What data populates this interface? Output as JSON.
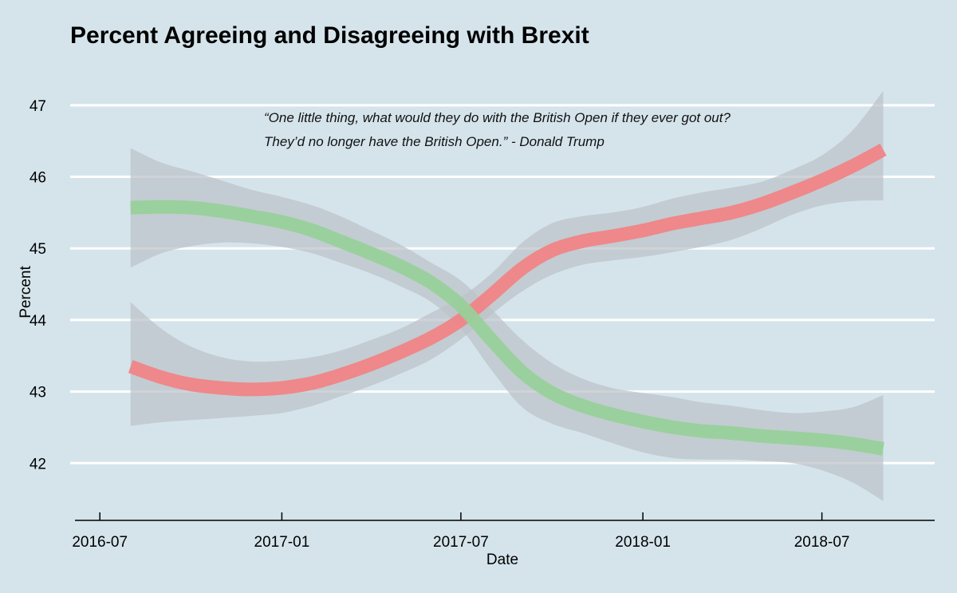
{
  "chart_data": {
    "type": "line",
    "title": "Percent Agreeing and Disagreeing with Brexit",
    "xlabel": "Date",
    "ylabel": "Percent",
    "x_ticks": [
      "2016-07-01",
      "2017-01-01",
      "2017-07-01",
      "2018-01-01",
      "2018-07-01"
    ],
    "x_tick_labels": [
      "2016-07",
      "2017-01",
      "2017-07",
      "2018-01",
      "2018-07"
    ],
    "y_ticks": [
      42,
      43,
      44,
      45,
      46,
      47
    ],
    "y_tick_labels": [
      "42",
      "43",
      "44",
      "45",
      "46",
      "47"
    ],
    "xlim": [
      "2016-06-01",
      "2018-10-23"
    ],
    "ylim": [
      41.2,
      47.6
    ],
    "grid": "horizontal",
    "annotation": [
      "“One little thing, what would they do with the British Open if they ever got out?",
      "They’d no longer have the British Open.” - Donald Trump"
    ],
    "colors": {
      "background": "#d5e4eb",
      "grid": "#ffffff",
      "band": "#bcc2c7",
      "series_red": "#f08486",
      "series_green": "#98d09a"
    },
    "series": [
      {
        "color": "#f08486",
        "x": [
          "2016-08-01",
          "2016-09-01",
          "2016-10-01",
          "2016-11-01",
          "2016-12-01",
          "2017-01-01",
          "2017-02-01",
          "2017-03-01",
          "2017-04-01",
          "2017-05-01",
          "2017-06-01",
          "2017-07-01",
          "2017-08-01",
          "2017-09-01",
          "2017-10-01",
          "2017-11-01",
          "2017-12-01",
          "2018-01-01",
          "2018-02-01",
          "2018-03-01",
          "2018-04-01",
          "2018-05-01",
          "2018-06-01",
          "2018-07-01",
          "2018-08-01",
          "2018-09-01"
        ],
        "values": [
          43.35,
          43.2,
          43.1,
          43.05,
          43.03,
          43.05,
          43.12,
          43.23,
          43.38,
          43.55,
          43.75,
          44.0,
          44.35,
          44.72,
          44.97,
          45.1,
          45.17,
          45.25,
          45.35,
          45.42,
          45.5,
          45.62,
          45.78,
          45.95,
          46.15,
          46.38
        ],
        "lower": [
          42.52,
          42.57,
          42.6,
          42.63,
          42.66,
          42.7,
          42.8,
          42.93,
          43.08,
          43.25,
          43.45,
          43.73,
          44.08,
          44.4,
          44.63,
          44.77,
          44.83,
          44.88,
          44.95,
          45.02,
          45.12,
          45.28,
          45.47,
          45.6,
          45.66,
          45.67
        ],
        "upper": [
          44.25,
          43.88,
          43.63,
          43.48,
          43.42,
          43.43,
          43.48,
          43.57,
          43.72,
          43.88,
          44.1,
          44.32,
          44.65,
          45.08,
          45.35,
          45.45,
          45.5,
          45.58,
          45.7,
          45.78,
          45.85,
          45.93,
          46.1,
          46.3,
          46.65,
          47.2
        ]
      },
      {
        "color": "#98d09a",
        "x": [
          "2016-08-01",
          "2016-09-01",
          "2016-10-01",
          "2016-11-01",
          "2016-12-01",
          "2017-01-01",
          "2017-02-01",
          "2017-03-01",
          "2017-04-01",
          "2017-05-01",
          "2017-06-01",
          "2017-07-01",
          "2017-08-01",
          "2017-09-01",
          "2017-10-01",
          "2017-11-01",
          "2017-12-01",
          "2018-01-01",
          "2018-02-01",
          "2018-03-01",
          "2018-04-01",
          "2018-05-01",
          "2018-06-01",
          "2018-07-01",
          "2018-08-01",
          "2018-09-01"
        ],
        "values": [
          45.57,
          45.58,
          45.57,
          45.52,
          45.45,
          45.37,
          45.25,
          45.1,
          44.93,
          44.75,
          44.52,
          44.2,
          43.72,
          43.27,
          42.98,
          42.8,
          42.68,
          42.58,
          42.5,
          42.45,
          42.42,
          42.38,
          42.35,
          42.32,
          42.27,
          42.2
        ],
        "lower": [
          44.73,
          44.93,
          45.03,
          45.08,
          45.07,
          45.02,
          44.93,
          44.8,
          44.65,
          44.47,
          44.25,
          43.88,
          43.3,
          42.78,
          42.55,
          42.42,
          42.28,
          42.15,
          42.07,
          42.05,
          42.05,
          42.03,
          42.0,
          41.9,
          41.73,
          41.47
        ],
        "upper": [
          46.4,
          46.2,
          46.08,
          45.95,
          45.82,
          45.72,
          45.6,
          45.45,
          45.25,
          45.05,
          44.8,
          44.55,
          44.15,
          43.72,
          43.4,
          43.18,
          43.05,
          42.98,
          42.92,
          42.85,
          42.8,
          42.74,
          42.7,
          42.72,
          42.78,
          42.95
        ]
      }
    ]
  }
}
